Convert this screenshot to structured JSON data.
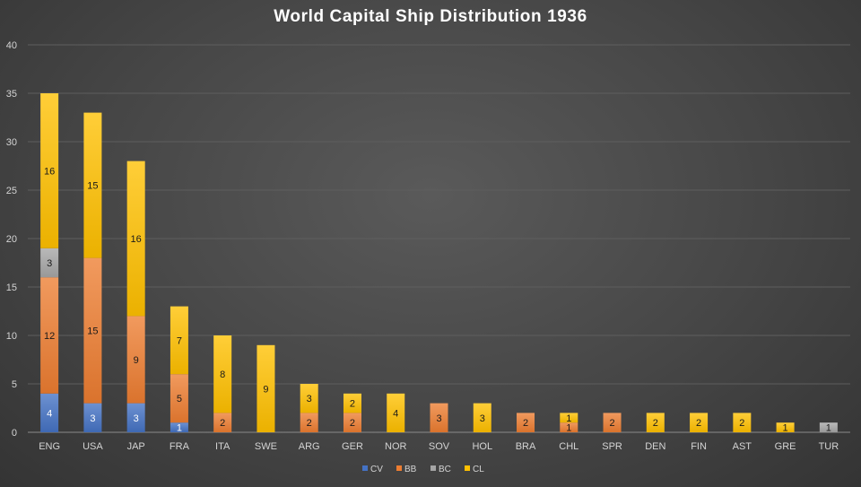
{
  "chart_data": {
    "type": "bar",
    "stacked": true,
    "title": "World Capital Ship Distribution 1936",
    "xlabel": "",
    "ylabel": "",
    "ylim": [
      0,
      40
    ],
    "yticks": [
      0,
      5,
      10,
      15,
      20,
      25,
      30,
      35,
      40
    ],
    "grid": true,
    "legend": "bottom",
    "categories": [
      "ENG",
      "USA",
      "JAP",
      "FRA",
      "ITA",
      "SWE",
      "ARG",
      "GER",
      "NOR",
      "SOV",
      "HOL",
      "BRA",
      "CHL",
      "SPR",
      "DEN",
      "FIN",
      "AST",
      "GRE",
      "TUR"
    ],
    "series": [
      {
        "name": "CV",
        "color": "#4472c4",
        "values": [
          4,
          3,
          3,
          1,
          0,
          0,
          0,
          0,
          0,
          0,
          0,
          0,
          0,
          0,
          0,
          0,
          0,
          0,
          0
        ]
      },
      {
        "name": "BB",
        "color": "#ed7d31",
        "values": [
          12,
          15,
          9,
          5,
          2,
          0,
          2,
          2,
          0,
          3,
          0,
          2,
          1,
          2,
          0,
          0,
          0,
          0,
          0
        ]
      },
      {
        "name": "BC",
        "color": "#a5a5a5",
        "values": [
          3,
          0,
          0,
          0,
          0,
          0,
          0,
          0,
          0,
          0,
          0,
          0,
          0,
          0,
          0,
          0,
          0,
          0,
          1
        ]
      },
      {
        "name": "CL",
        "color": "#ffc000",
        "values": [
          16,
          15,
          16,
          7,
          8,
          9,
          3,
          2,
          4,
          0,
          3,
          0,
          1,
          0,
          2,
          2,
          2,
          1,
          0
        ]
      }
    ]
  }
}
